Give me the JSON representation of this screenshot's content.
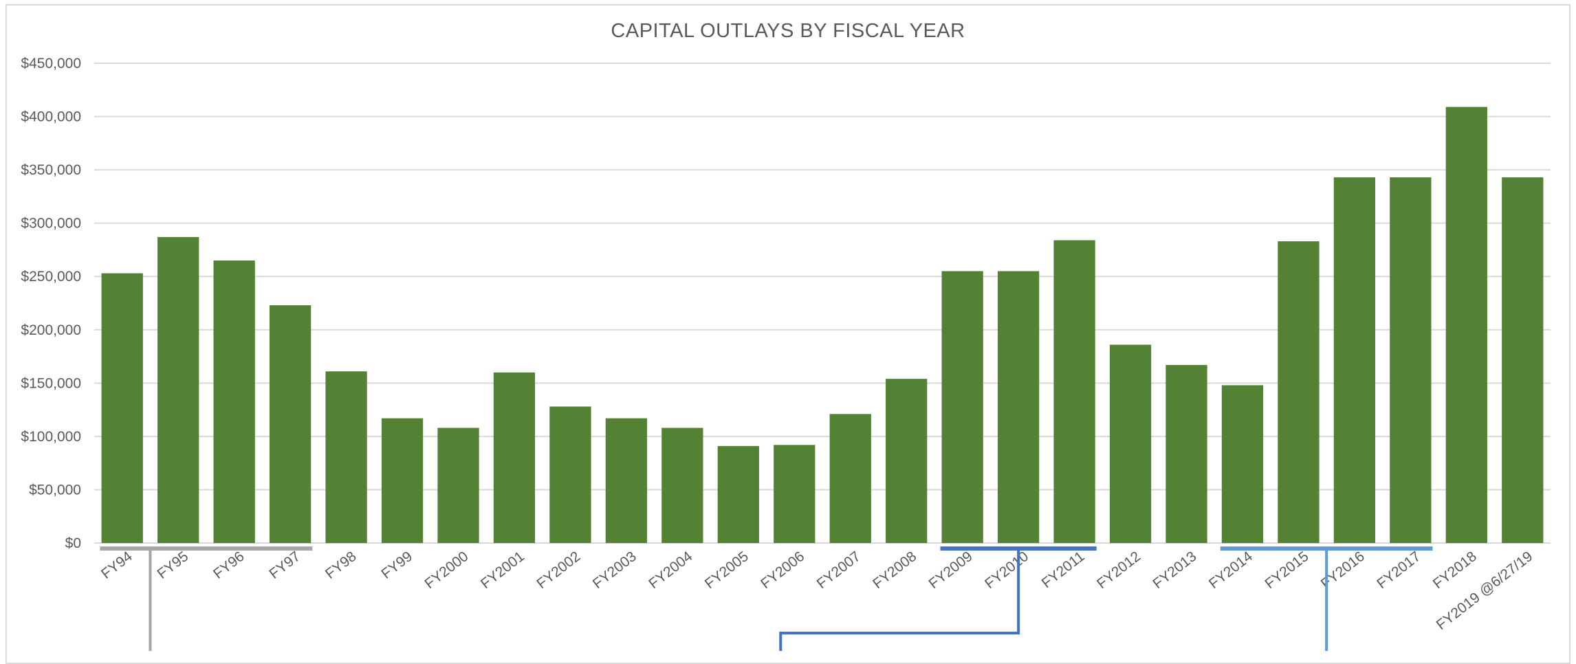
{
  "chart_data": {
    "type": "bar",
    "title": "CAPITAL OUTLAYS BY FISCAL YEAR",
    "xlabel": "",
    "ylabel": "",
    "ylim": [
      0,
      450000
    ],
    "yticks": [
      0,
      50000,
      100000,
      150000,
      200000,
      250000,
      300000,
      350000,
      400000,
      450000
    ],
    "ytick_labels": [
      "$0",
      "$50,000",
      "$100,000",
      "$150,000",
      "$200,000",
      "$250,000",
      "$300,000",
      "$350,000",
      "$400,000",
      "$450,000"
    ],
    "grid": true,
    "legend": "none",
    "bar_color": "#548235",
    "categories": [
      "FY94",
      "FY95",
      "FY96",
      "FY97",
      "FY98",
      "FY99",
      "FY2000",
      "FY2001",
      "FY2002",
      "FY2003",
      "FY2004",
      "FY2005",
      "FY2006",
      "FY2007",
      "FY2008",
      "FY2009",
      "FY2010",
      "FY2011",
      "FY2012",
      "FY2013",
      "FY2014",
      "FY2015",
      "FY2016",
      "FY2017",
      "FY2018",
      "FY2019 @6/27/19"
    ],
    "values": [
      253000,
      287000,
      265000,
      223000,
      161000,
      117000,
      108000,
      160000,
      128000,
      117000,
      108000,
      91000,
      92000,
      121000,
      154000,
      255000,
      255000,
      284000,
      186000,
      167000,
      148000,
      283000,
      343000,
      343000,
      409000,
      343000
    ],
    "brackets": [
      {
        "from": "FY94",
        "to": "FY97",
        "color": "#a6a6a6"
      },
      {
        "from": "FY2009",
        "to": "FY2011",
        "color": "#4472c4"
      },
      {
        "from": "FY2014",
        "to": "FY2017",
        "color": "#5b9bd5"
      }
    ]
  }
}
